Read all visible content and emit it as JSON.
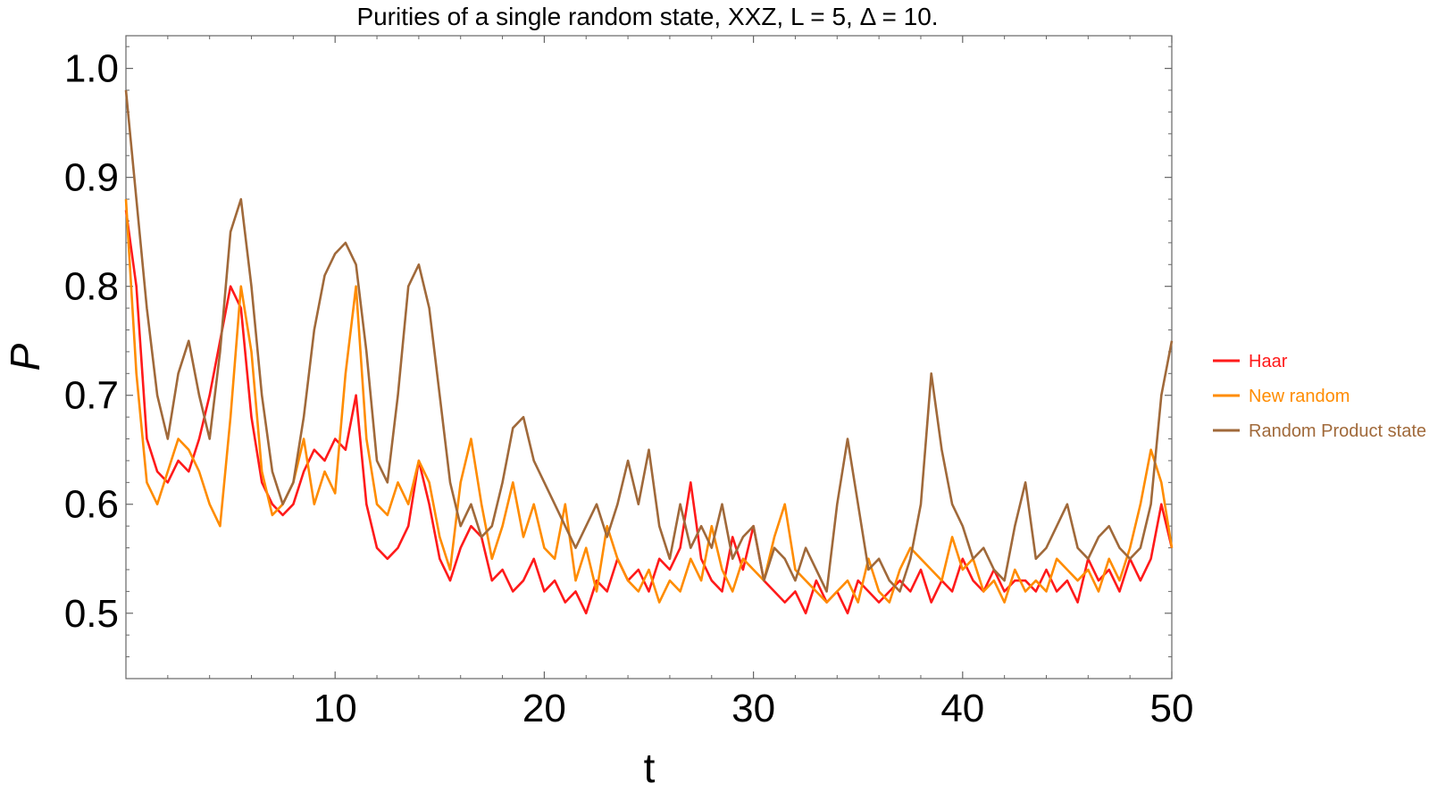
{
  "chart_data": {
    "type": "line",
    "title": "Purities of a single random state, XXZ, L = 5, Δ = 10.",
    "xlabel": "t",
    "ylabel": "P",
    "xlim": [
      0,
      50
    ],
    "ylim": [
      0.44,
      1.03
    ],
    "xticks": [
      10,
      20,
      30,
      40,
      50
    ],
    "yticks": [
      0.5,
      0.6,
      0.7,
      0.8,
      0.9,
      1.0
    ],
    "ytick_labels": [
      "0.5",
      "0.6",
      "0.7",
      "0.8",
      "0.9",
      "1.0"
    ],
    "grid": false,
    "legend_position": "right",
    "series": [
      {
        "name": "Haar",
        "color": "#ff1a1a",
        "x": [
          0,
          0.5,
          1,
          1.5,
          2,
          2.5,
          3,
          3.5,
          4,
          4.5,
          5,
          5.5,
          6,
          6.5,
          7,
          7.5,
          8,
          8.5,
          9,
          9.5,
          10,
          10.5,
          11,
          11.5,
          12,
          12.5,
          13,
          13.5,
          14,
          14.5,
          15,
          15.5,
          16,
          16.5,
          17,
          17.5,
          18,
          18.5,
          19,
          19.5,
          20,
          20.5,
          21,
          21.5,
          22,
          22.5,
          23,
          23.5,
          24,
          24.5,
          25,
          25.5,
          26,
          26.5,
          27,
          27.5,
          28,
          28.5,
          29,
          29.5,
          30,
          30.5,
          31,
          31.5,
          32,
          32.5,
          33,
          33.5,
          34,
          34.5,
          35,
          35.5,
          36,
          36.5,
          37,
          37.5,
          38,
          38.5,
          39,
          39.5,
          40,
          40.5,
          41,
          41.5,
          42,
          42.5,
          43,
          43.5,
          44,
          44.5,
          45,
          45.5,
          46,
          46.5,
          47,
          47.5,
          48,
          48.5,
          49,
          49.5,
          50
        ],
        "y": [
          0.87,
          0.8,
          0.66,
          0.63,
          0.62,
          0.64,
          0.63,
          0.66,
          0.7,
          0.75,
          0.8,
          0.78,
          0.68,
          0.62,
          0.6,
          0.59,
          0.6,
          0.63,
          0.65,
          0.64,
          0.66,
          0.65,
          0.7,
          0.6,
          0.56,
          0.55,
          0.56,
          0.58,
          0.64,
          0.6,
          0.55,
          0.53,
          0.56,
          0.58,
          0.57,
          0.53,
          0.54,
          0.52,
          0.53,
          0.55,
          0.52,
          0.53,
          0.51,
          0.52,
          0.5,
          0.53,
          0.52,
          0.55,
          0.53,
          0.54,
          0.52,
          0.55,
          0.54,
          0.56,
          0.62,
          0.55,
          0.53,
          0.52,
          0.57,
          0.54,
          0.58,
          0.53,
          0.52,
          0.51,
          0.52,
          0.5,
          0.53,
          0.51,
          0.52,
          0.5,
          0.53,
          0.52,
          0.51,
          0.52,
          0.53,
          0.52,
          0.54,
          0.51,
          0.53,
          0.52,
          0.55,
          0.53,
          0.52,
          0.54,
          0.52,
          0.53,
          0.53,
          0.52,
          0.54,
          0.52,
          0.53,
          0.51,
          0.55,
          0.53,
          0.54,
          0.52,
          0.55,
          0.53,
          0.55,
          0.6,
          0.56
        ]
      },
      {
        "name": "New random",
        "color": "#ff8c00",
        "x": [
          0,
          0.5,
          1,
          1.5,
          2,
          2.5,
          3,
          3.5,
          4,
          4.5,
          5,
          5.5,
          6,
          6.5,
          7,
          7.5,
          8,
          8.5,
          9,
          9.5,
          10,
          10.5,
          11,
          11.5,
          12,
          12.5,
          13,
          13.5,
          14,
          14.5,
          15,
          15.5,
          16,
          16.5,
          17,
          17.5,
          18,
          18.5,
          19,
          19.5,
          20,
          20.5,
          21,
          21.5,
          22,
          22.5,
          23,
          23.5,
          24,
          24.5,
          25,
          25.5,
          26,
          26.5,
          27,
          27.5,
          28,
          28.5,
          29,
          29.5,
          30,
          30.5,
          31,
          31.5,
          32,
          32.5,
          33,
          33.5,
          34,
          34.5,
          35,
          35.5,
          36,
          36.5,
          37,
          37.5,
          38,
          38.5,
          39,
          39.5,
          40,
          40.5,
          41,
          41.5,
          42,
          42.5,
          43,
          43.5,
          44,
          44.5,
          45,
          45.5,
          46,
          46.5,
          47,
          47.5,
          48,
          48.5,
          49,
          49.5,
          50
        ],
        "y": [
          0.88,
          0.72,
          0.62,
          0.6,
          0.63,
          0.66,
          0.65,
          0.63,
          0.6,
          0.58,
          0.68,
          0.8,
          0.74,
          0.63,
          0.59,
          0.6,
          0.62,
          0.66,
          0.6,
          0.63,
          0.61,
          0.72,
          0.8,
          0.66,
          0.6,
          0.59,
          0.62,
          0.6,
          0.64,
          0.62,
          0.57,
          0.54,
          0.62,
          0.66,
          0.6,
          0.55,
          0.58,
          0.62,
          0.57,
          0.6,
          0.56,
          0.55,
          0.6,
          0.53,
          0.56,
          0.52,
          0.58,
          0.55,
          0.53,
          0.52,
          0.54,
          0.51,
          0.53,
          0.52,
          0.55,
          0.53,
          0.58,
          0.54,
          0.52,
          0.55,
          0.54,
          0.53,
          0.57,
          0.6,
          0.54,
          0.53,
          0.52,
          0.51,
          0.52,
          0.53,
          0.51,
          0.55,
          0.52,
          0.51,
          0.54,
          0.56,
          0.55,
          0.54,
          0.53,
          0.57,
          0.54,
          0.55,
          0.52,
          0.53,
          0.51,
          0.54,
          0.52,
          0.53,
          0.52,
          0.55,
          0.54,
          0.53,
          0.54,
          0.52,
          0.55,
          0.53,
          0.56,
          0.6,
          0.65,
          0.62,
          0.56
        ]
      },
      {
        "name": "Random Product state",
        "color": "#a0693a",
        "x": [
          0,
          0.5,
          1,
          1.5,
          2,
          2.5,
          3,
          3.5,
          4,
          4.5,
          5,
          5.5,
          6,
          6.5,
          7,
          7.5,
          8,
          8.5,
          9,
          9.5,
          10,
          10.5,
          11,
          11.5,
          12,
          12.5,
          13,
          13.5,
          14,
          14.5,
          15,
          15.5,
          16,
          16.5,
          17,
          17.5,
          18,
          18.5,
          19,
          19.5,
          20,
          20.5,
          21,
          21.5,
          22,
          22.5,
          23,
          23.5,
          24,
          24.5,
          25,
          25.5,
          26,
          26.5,
          27,
          27.5,
          28,
          28.5,
          29,
          29.5,
          30,
          30.5,
          31,
          31.5,
          32,
          32.5,
          33,
          33.5,
          34,
          34.5,
          35,
          35.5,
          36,
          36.5,
          37,
          37.5,
          38,
          38.5,
          39,
          39.5,
          40,
          40.5,
          41,
          41.5,
          42,
          42.5,
          43,
          43.5,
          44,
          44.5,
          45,
          45.5,
          46,
          46.5,
          47,
          47.5,
          48,
          48.5,
          49,
          49.5,
          50
        ],
        "y": [
          0.98,
          0.88,
          0.78,
          0.7,
          0.66,
          0.72,
          0.75,
          0.7,
          0.66,
          0.74,
          0.85,
          0.88,
          0.8,
          0.7,
          0.63,
          0.6,
          0.62,
          0.68,
          0.76,
          0.81,
          0.83,
          0.84,
          0.82,
          0.74,
          0.64,
          0.62,
          0.7,
          0.8,
          0.82,
          0.78,
          0.7,
          0.62,
          0.58,
          0.6,
          0.57,
          0.58,
          0.62,
          0.67,
          0.68,
          0.64,
          0.62,
          0.6,
          0.58,
          0.56,
          0.58,
          0.6,
          0.57,
          0.6,
          0.64,
          0.6,
          0.65,
          0.58,
          0.55,
          0.6,
          0.56,
          0.58,
          0.56,
          0.6,
          0.55,
          0.57,
          0.58,
          0.53,
          0.56,
          0.55,
          0.53,
          0.56,
          0.54,
          0.52,
          0.6,
          0.66,
          0.6,
          0.54,
          0.55,
          0.53,
          0.52,
          0.55,
          0.6,
          0.72,
          0.65,
          0.6,
          0.58,
          0.55,
          0.56,
          0.54,
          0.53,
          0.58,
          0.62,
          0.55,
          0.56,
          0.58,
          0.6,
          0.56,
          0.55,
          0.57,
          0.58,
          0.56,
          0.55,
          0.56,
          0.6,
          0.7,
          0.75
        ]
      }
    ]
  }
}
